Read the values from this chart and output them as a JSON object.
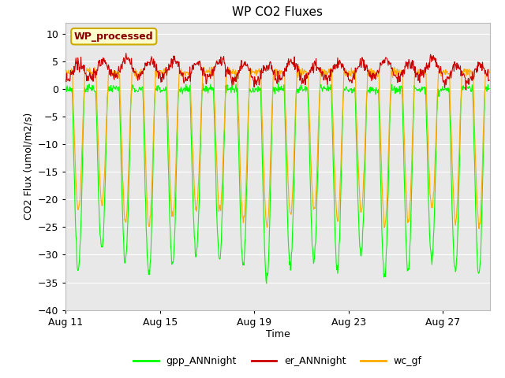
{
  "title": "WP CO2 Fluxes",
  "xlabel": "Time",
  "ylabel_display": "CO2 Flux (umol/m2/s)",
  "ylim": [
    -40,
    12
  ],
  "yticks": [
    -40,
    -35,
    -30,
    -25,
    -20,
    -15,
    -10,
    -5,
    0,
    5,
    10
  ],
  "x_start_day": 11,
  "num_days": 18,
  "points_per_day": 48,
  "x_tick_days": [
    11,
    15,
    19,
    23,
    27
  ],
  "x_tick_labels": [
    "Aug 11",
    "Aug 15",
    "Aug 19",
    "Aug 23",
    "Aug 27"
  ],
  "annotation_text": "WP_processed",
  "annotation_bg": "#ffffcc",
  "annotation_border": "#ccaa00",
  "annotation_text_color": "#880000",
  "fig_bg_color": "#ffffff",
  "plot_bg_color": "#e8e8e8",
  "grid_color": "#ffffff",
  "line_gpp_color": "#00ff00",
  "line_er_color": "#cc0000",
  "line_wc_color": "#ffaa00",
  "line_width": 0.8,
  "legend_gpp": "gpp_ANNnight",
  "legend_er": "er_ANNnight",
  "legend_wc": "wc_gf"
}
